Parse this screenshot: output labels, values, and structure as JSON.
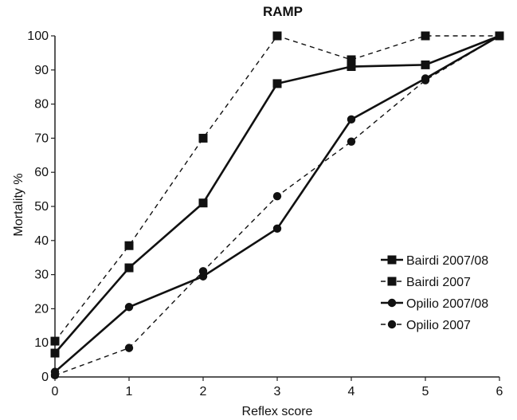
{
  "chart_data": {
    "type": "line",
    "title": "RAMP",
    "xlabel": "Reflex score",
    "ylabel": "Mortality %",
    "x": [
      0,
      1,
      2,
      3,
      4,
      5,
      6
    ],
    "xlim": [
      0,
      6
    ],
    "ylim": [
      0,
      100
    ],
    "x_ticks": [
      "0",
      "1",
      "2",
      "3",
      "4",
      "5",
      "6"
    ],
    "y_ticks": [
      "0",
      "10",
      "20",
      "30",
      "40",
      "50",
      "60",
      "70",
      "80",
      "90",
      "100"
    ],
    "grid": false,
    "legend_position": "bottom-right",
    "series": [
      {
        "name": "Bairdi 2007/08",
        "values": [
          7,
          32,
          51,
          86,
          91,
          91.5,
          100
        ],
        "marker": "square",
        "line": "solid",
        "color": "#111111"
      },
      {
        "name": "Bairdi 2007",
        "values": [
          10.5,
          38.5,
          70,
          100,
          93,
          100,
          100
        ],
        "marker": "square",
        "line": "dashed",
        "color": "#111111"
      },
      {
        "name": "Opilio 2007/08",
        "values": [
          1.5,
          20.5,
          29.5,
          43.5,
          75.5,
          87.5,
          100
        ],
        "marker": "circle",
        "line": "solid",
        "color": "#111111"
      },
      {
        "name": "Opilio 2007",
        "values": [
          0.5,
          8.5,
          31,
          53,
          69,
          87,
          100
        ],
        "marker": "circle",
        "line": "dashed",
        "color": "#111111"
      }
    ]
  }
}
